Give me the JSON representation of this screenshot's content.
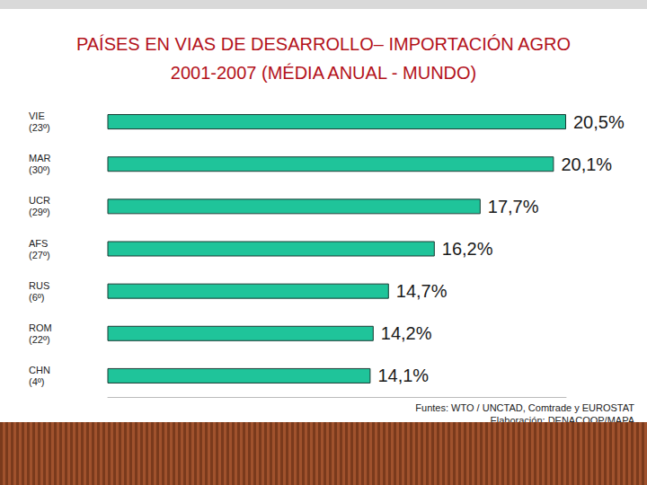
{
  "chart_data": {
    "type": "bar",
    "title": "PAÍSES EN VIAS DE DESARROLLO– IMPORTACIÓN AGRO\n2001-2007 (MÉDIA ANUAL - MUNDO)",
    "categories": [
      "VIE\n(23º)",
      "MAR\n(30º)",
      "UCR\n(29º)",
      "AFS\n(27º)",
      "RUS\n(6º)",
      "ROM\n(22º)",
      "CHN\n(4º)"
    ],
    "values": [
      20.5,
      20.1,
      17.7,
      16.2,
      14.7,
      14.2,
      14.1
    ],
    "value_labels": [
      "20,5%",
      "20,1%",
      "17,7%",
      "16,2%",
      "14,7%",
      "14,2%",
      "14,1%"
    ],
    "color": "#1fc49a",
    "orientation": "horizontal",
    "data_labels": true,
    "tick_labels": "y",
    "grid": false,
    "xlim": [
      5.5,
      20.5
    ],
    "annotations": [
      "Funtes: WTO / UNCTAD, Comtrade y EUROSTAT",
      "Elaboración: DENACOOP/MAPA"
    ]
  }
}
